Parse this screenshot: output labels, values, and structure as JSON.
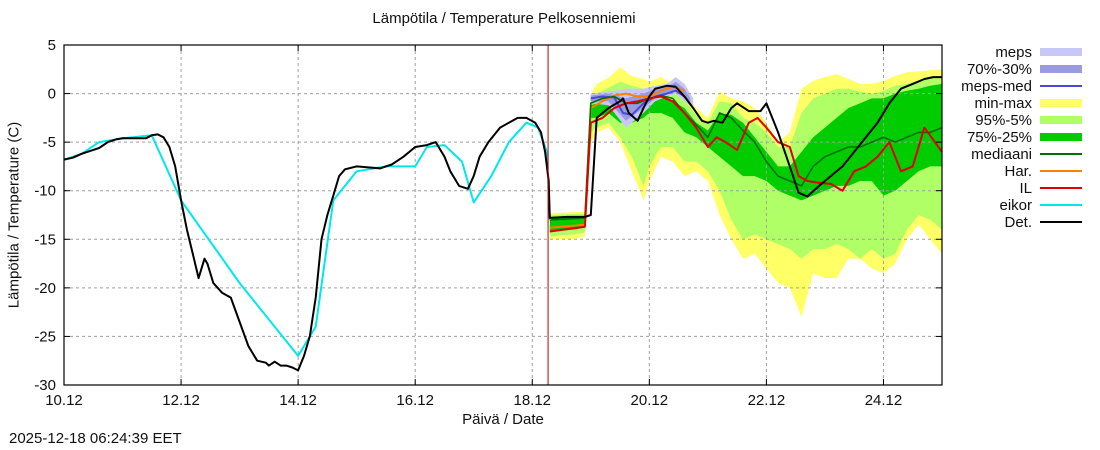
{
  "title": "Lämpötila / Temperature   Pelkosenniemi",
  "timestamp": "2025-12-18 06:24:39 EET",
  "chart_data": {
    "type": "line",
    "title": "Lämpötila / Temperature   Pelkosenniemi",
    "xlabel": "Päivä / Date",
    "ylabel": "Lämpötila / Temperature (C)",
    "x_unit": "days since 10.12 00:00",
    "xlim": [
      0,
      15
    ],
    "ylim": [
      -30,
      5
    ],
    "grid": true,
    "legend_position": "right-outside",
    "xticks": [
      {
        "x": 0,
        "label": "10.12"
      },
      {
        "x": 2,
        "label": "12.12"
      },
      {
        "x": 4,
        "label": "14.12"
      },
      {
        "x": 6,
        "label": "16.12"
      },
      {
        "x": 8,
        "label": "18.12"
      },
      {
        "x": 10,
        "label": "20.12"
      },
      {
        "x": 12,
        "label": "22.12"
      },
      {
        "x": 14,
        "label": "24.12"
      }
    ],
    "yticks": [
      5,
      0,
      -5,
      -10,
      -15,
      -20,
      -25,
      -30
    ],
    "now_marker": {
      "x": 8.27,
      "color": "#c00000"
    },
    "legend": [
      {
        "name": "meps",
        "kind": "band",
        "color": "#c8c8f8"
      },
      {
        "name": "70%-30%",
        "kind": "band",
        "color": "#9a9ade"
      },
      {
        "name": "meps-med",
        "kind": "line",
        "color": "#4a4ad8"
      },
      {
        "name": "min-max",
        "kind": "band",
        "color": "#ffff66"
      },
      {
        "name": "95%-5%",
        "kind": "band",
        "color": "#b0ff66"
      },
      {
        "name": "75%-25%",
        "kind": "band",
        "color": "#00cc00"
      },
      {
        "name": "mediaani",
        "kind": "line",
        "color": "#007000"
      },
      {
        "name": "Har.",
        "kind": "line",
        "color": "#ff8000"
      },
      {
        "name": "IL",
        "kind": "line",
        "color": "#e00000"
      },
      {
        "name": "eikor",
        "kind": "line",
        "color": "#00e8e8"
      },
      {
        "name": "Det.",
        "kind": "line",
        "color": "#000000"
      }
    ],
    "bands": [
      {
        "name": "min-max",
        "color": "#ffff66",
        "x": [
          8.3,
          8.7,
          8.9,
          9.0,
          9.1,
          9.3,
          9.5,
          9.7,
          9.9,
          10.0,
          10.2,
          10.4,
          10.6,
          10.8,
          11.0,
          11.2,
          11.4,
          11.6,
          11.8,
          12.0,
          12.2,
          12.4,
          12.6,
          12.8,
          13.0,
          13.2,
          13.4,
          13.6,
          13.8,
          14.0,
          14.2,
          14.4,
          14.6,
          14.8,
          15.0
        ],
        "high": [
          -12.3,
          -12.2,
          -12.2,
          0.0,
          1.0,
          1.6,
          2.7,
          1.8,
          1.5,
          1.2,
          1.7,
          1.0,
          0.3,
          -1.5,
          -2.5,
          0.2,
          -0.5,
          -0.8,
          -1.5,
          -3.0,
          -5.0,
          -4.0,
          0.5,
          1.3,
          1.7,
          2.0,
          1.5,
          1.0,
          1.0,
          1.3,
          1.8,
          2.2,
          2.3,
          2.4,
          2.5
        ],
        "low": [
          -15.0,
          -15.0,
          -14.7,
          -5.0,
          -4.0,
          -3.5,
          -5.0,
          -8.0,
          -11.0,
          -9.0,
          -6.5,
          -7.0,
          -8.5,
          -8.0,
          -9.0,
          -12.5,
          -15.0,
          -17.0,
          -16.5,
          -18.0,
          -19.5,
          -20.0,
          -23.0,
          -18.5,
          -19.0,
          -19.0,
          -17.0,
          -17.0,
          -18.0,
          -18.5,
          -17.5,
          -15.0,
          -13.5,
          -15.0,
          -16.5
        ]
      },
      {
        "name": "95%-5%",
        "color": "#b0ff66",
        "x": [
          8.3,
          8.7,
          8.9,
          9.0,
          9.1,
          9.3,
          9.5,
          9.7,
          9.9,
          10.0,
          10.2,
          10.4,
          10.6,
          10.8,
          11.0,
          11.2,
          11.4,
          11.6,
          11.8,
          12.0,
          12.2,
          12.4,
          12.6,
          12.8,
          13.0,
          13.2,
          13.4,
          13.6,
          13.8,
          14.0,
          14.2,
          14.4,
          14.6,
          14.8,
          15.0
        ],
        "high": [
          -12.5,
          -12.4,
          -12.4,
          -0.5,
          0.0,
          0.6,
          1.2,
          0.8,
          0.5,
          0.3,
          0.6,
          0.2,
          -0.7,
          -2.2,
          -3.0,
          -0.8,
          -1.0,
          -2.5,
          -3.0,
          -4.0,
          -5.5,
          -5.5,
          -2.0,
          -0.5,
          0.0,
          0.5,
          0.5,
          0.2,
          0.0,
          0.3,
          0.8,
          1.0,
          1.3,
          1.6,
          1.8
        ],
        "low": [
          -14.7,
          -14.5,
          -14.3,
          -4.0,
          -3.5,
          -3.0,
          -4.5,
          -6.5,
          -9.5,
          -7.5,
          -5.5,
          -5.5,
          -7.0,
          -7.0,
          -8.0,
          -10.0,
          -13.0,
          -15.0,
          -14.5,
          -15.0,
          -15.5,
          -16.0,
          -17.0,
          -16.0,
          -16.0,
          -15.5,
          -16.0,
          -17.0,
          -16.0,
          -17.0,
          -16.5,
          -14.0,
          -12.5,
          -13.0,
          -14.0
        ]
      },
      {
        "name": "75%-25%",
        "color": "#00cc00",
        "x": [
          8.3,
          8.7,
          8.9,
          9.0,
          9.1,
          9.3,
          9.5,
          9.7,
          9.9,
          10.0,
          10.2,
          10.4,
          10.6,
          10.8,
          11.0,
          11.2,
          11.4,
          11.6,
          11.8,
          12.0,
          12.2,
          12.4,
          12.6,
          12.8,
          13.0,
          13.2,
          13.4,
          13.6,
          13.8,
          14.0,
          14.2,
          14.4,
          14.6,
          14.8,
          15.0
        ],
        "high": [
          -12.7,
          -12.6,
          -12.6,
          -1.2,
          -1.0,
          -0.5,
          0.0,
          0.0,
          -0.5,
          -0.6,
          -0.3,
          -0.8,
          -1.5,
          -3.0,
          -3.8,
          -2.0,
          -2.2,
          -3.0,
          -4.5,
          -6.0,
          -7.5,
          -7.5,
          -6.0,
          -4.5,
          -3.5,
          -2.5,
          -1.5,
          -1.0,
          -0.5,
          -0.5,
          0.0,
          0.3,
          0.5,
          0.8,
          1.0
        ],
        "low": [
          -14.2,
          -14.0,
          -13.8,
          -2.5,
          -2.5,
          -2.0,
          -3.0,
          -3.0,
          -2.5,
          -2.0,
          -2.0,
          -2.5,
          -4.0,
          -4.5,
          -5.5,
          -6.5,
          -7.5,
          -8.5,
          -8.5,
          -9.0,
          -10.0,
          -10.5,
          -11.0,
          -10.5,
          -10.0,
          -9.5,
          -9.5,
          -9.0,
          -9.0,
          -10.5,
          -10.0,
          -9.0,
          -8.0,
          -7.5,
          -7.5
        ]
      },
      {
        "name": "meps",
        "color": "#c8c8f8",
        "x": [
          9.0,
          9.3,
          9.6,
          9.9,
          10.1,
          10.3,
          10.45,
          10.6,
          10.75
        ],
        "high": [
          0.0,
          0.2,
          0.5,
          0.5,
          0.8,
          1.0,
          1.7,
          1.0,
          -0.5
        ],
        "low": [
          -1.0,
          -1.2,
          -3.5,
          -2.0,
          -0.8,
          -0.3,
          0.0,
          -0.8,
          -1.5
        ]
      },
      {
        "name": "70%-30%",
        "color": "#9a9ade",
        "x": [
          9.0,
          9.3,
          9.6,
          9.9,
          10.1,
          10.3,
          10.45,
          10.6,
          10.7
        ],
        "high": [
          -0.2,
          0.0,
          -0.5,
          0.0,
          0.5,
          0.7,
          1.2,
          0.5,
          -0.5
        ],
        "low": [
          -0.8,
          -0.8,
          -2.8,
          -1.5,
          -0.5,
          0.0,
          0.3,
          -0.5,
          -1.0
        ]
      }
    ],
    "series": [
      {
        "name": "meps-med",
        "color": "#4a4ad8",
        "x": [
          9.0,
          9.2,
          9.4,
          9.55,
          9.7,
          9.9,
          10.1,
          10.3,
          10.45,
          10.6
        ],
        "y": [
          -0.5,
          -0.3,
          -0.4,
          -2.0,
          -2.2,
          -1.0,
          -0.3,
          0.0,
          0.3,
          -0.3
        ]
      },
      {
        "name": "Har.",
        "color": "#ff8000",
        "x": [
          8.3,
          8.9,
          9.0,
          9.2,
          9.4,
          9.6,
          9.8,
          10.0,
          10.2,
          10.4,
          10.6
        ],
        "y": [
          -13.8,
          -13.5,
          -1.5,
          -0.8,
          -0.2,
          0.0,
          -0.3,
          -0.3,
          0.3,
          0.7,
          0.3
        ]
      },
      {
        "name": "mediaani",
        "color": "#007000",
        "x": [
          8.3,
          8.9,
          9.0,
          9.2,
          9.4,
          9.6,
          9.8,
          10.0,
          10.2,
          10.4,
          10.6,
          10.8,
          11.0,
          11.2,
          11.4,
          11.6,
          11.8,
          12.0,
          12.2,
          12.4,
          12.6,
          12.8,
          13.0,
          13.2,
          13.4,
          13.6,
          13.8,
          14.0,
          14.2,
          14.4,
          14.6,
          14.8,
          15.0
        ],
        "y": [
          -13.0,
          -12.8,
          -1.0,
          -0.5,
          -0.3,
          -1.0,
          -1.0,
          -0.5,
          -0.2,
          -0.5,
          -2.0,
          -3.2,
          -4.5,
          -2.0,
          -2.5,
          -3.8,
          -5.0,
          -7.0,
          -8.5,
          -9.0,
          -9.5,
          -7.5,
          -6.5,
          -6.0,
          -5.5,
          -5.5,
          -5.0,
          -4.5,
          -5.0,
          -4.5,
          -4.0,
          -4.0,
          -3.5
        ]
      },
      {
        "name": "IL",
        "color": "#e00000",
        "x": [
          8.3,
          8.9,
          9.0,
          9.2,
          9.4,
          9.6,
          9.8,
          10.0,
          10.2,
          10.4,
          10.6,
          10.8,
          11.0,
          11.15,
          11.3,
          11.5,
          11.7,
          11.85,
          12.0,
          12.2,
          12.4,
          12.55,
          12.7,
          12.9,
          13.1,
          13.3,
          13.5,
          13.7,
          13.9,
          14.1,
          14.3,
          14.5,
          14.7,
          15.0
        ],
        "y": [
          -14.2,
          -13.7,
          -3.0,
          -2.5,
          -1.5,
          -1.0,
          -0.8,
          -0.5,
          -0.3,
          -0.8,
          -2.0,
          -3.5,
          -5.5,
          -4.5,
          -5.0,
          -5.8,
          -3.0,
          -2.5,
          -3.5,
          -5.0,
          -5.5,
          -8.5,
          -9.0,
          -9.2,
          -9.3,
          -10.0,
          -8.0,
          -7.5,
          -6.5,
          -5.0,
          -8.0,
          -7.5,
          -3.5,
          -6.0
        ]
      },
      {
        "name": "eikor",
        "color": "#00e8e8",
        "x": [
          0.0,
          0.3,
          0.6,
          1.0,
          1.5,
          2.0,
          3.0,
          4.0,
          4.3,
          4.6,
          5.0,
          5.5,
          6.0,
          6.2,
          6.5,
          6.8,
          7.0,
          7.3,
          7.6,
          7.9,
          8.1,
          8.25,
          8.3
        ],
        "y": [
          -6.8,
          -6.2,
          -5.0,
          -4.6,
          -4.3,
          -11.0,
          -19.5,
          -27.0,
          -24.0,
          -11.0,
          -8.0,
          -7.5,
          -7.5,
          -5.5,
          -5.3,
          -7.0,
          -11.2,
          -8.5,
          -5.0,
          -3.0,
          -3.5,
          -6.0,
          -13.0
        ]
      },
      {
        "name": "Det.",
        "color": "#000000",
        "x": [
          0.0,
          0.15,
          0.3,
          0.5,
          0.6,
          0.75,
          0.9,
          1.0,
          1.2,
          1.4,
          1.5,
          1.6,
          1.7,
          1.8,
          1.9,
          2.0,
          2.05,
          2.1,
          2.2,
          2.3,
          2.4,
          2.45,
          2.55,
          2.7,
          2.85,
          3.0,
          3.15,
          3.3,
          3.45,
          3.5,
          3.6,
          3.7,
          3.8,
          3.9,
          4.0,
          4.1,
          4.2,
          4.3,
          4.4,
          4.5,
          4.6,
          4.7,
          4.8,
          5.0,
          5.2,
          5.4,
          5.6,
          5.8,
          6.0,
          6.2,
          6.35,
          6.5,
          6.6,
          6.75,
          6.9,
          7.0,
          7.1,
          7.25,
          7.45,
          7.6,
          7.75,
          7.9,
          8.05,
          8.15,
          8.22,
          8.28,
          8.3,
          8.6,
          8.9,
          9.0,
          9.1,
          9.3,
          9.5,
          9.55,
          9.65,
          9.8,
          9.9,
          10.0,
          10.1,
          10.3,
          10.45,
          10.6,
          10.75,
          10.9,
          11.0,
          11.1,
          11.25,
          11.4,
          11.5,
          11.7,
          11.9,
          12.0,
          12.2,
          12.4,
          12.55,
          12.7,
          12.9,
          13.1,
          13.3,
          13.5,
          13.7,
          13.9,
          14.1,
          14.3,
          14.5,
          14.7,
          14.85,
          15.0
        ],
        "y": [
          -6.8,
          -6.6,
          -6.2,
          -5.8,
          -5.6,
          -5.0,
          -4.7,
          -4.6,
          -4.6,
          -4.6,
          -4.3,
          -4.2,
          -4.5,
          -5.5,
          -7.5,
          -11.0,
          -12.5,
          -14.0,
          -16.5,
          -19.0,
          -17.0,
          -17.5,
          -19.5,
          -20.5,
          -21.0,
          -23.5,
          -26.0,
          -27.5,
          -27.7,
          -28.0,
          -27.6,
          -28.0,
          -28.0,
          -28.2,
          -28.5,
          -27.0,
          -25.0,
          -21.0,
          -15.0,
          -12.5,
          -10.5,
          -8.5,
          -7.8,
          -7.5,
          -7.6,
          -7.7,
          -7.3,
          -6.5,
          -5.5,
          -5.3,
          -5.0,
          -6.5,
          -8.0,
          -9.5,
          -9.8,
          -8.5,
          -6.5,
          -5.0,
          -3.5,
          -3.0,
          -2.5,
          -2.5,
          -3.0,
          -4.0,
          -6.0,
          -9.0,
          -12.8,
          -12.7,
          -12.7,
          -12.5,
          -2.5,
          -1.5,
          -0.8,
          -0.5,
          -2.0,
          -2.8,
          -1.5,
          -0.3,
          0.5,
          0.8,
          0.7,
          -0.3,
          -1.5,
          -2.8,
          -3.0,
          -2.8,
          -3.0,
          -1.5,
          -1.0,
          -1.8,
          -1.8,
          -1.0,
          -4.0,
          -7.5,
          -10.2,
          -10.6,
          -9.5,
          -8.5,
          -7.5,
          -6.0,
          -4.5,
          -3.0,
          -1.0,
          0.5,
          1.0,
          1.5,
          1.7,
          1.7
        ]
      }
    ]
  }
}
